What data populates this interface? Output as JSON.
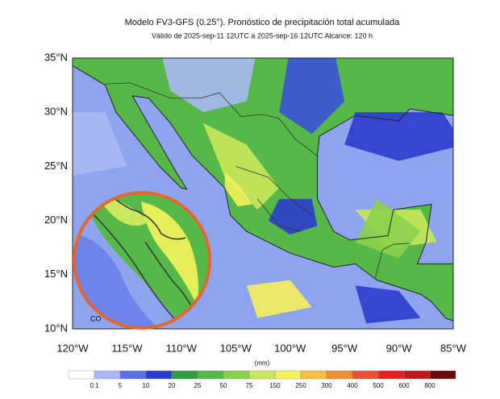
{
  "title": "Modelo FV3-GFS (0.25°). Pronóstico de precipitación total acumulada",
  "subtitle": "Válido de 2025-sep-11 12UTC a 2025-sep-16 12UTC    Alcance: 120 h",
  "map": {
    "lat_labels": [
      "35°N",
      "30°N",
      "25°N",
      "20°N",
      "15°N",
      "10°N"
    ],
    "lon_labels": [
      "120°W",
      "115°W",
      "110°W",
      "105°W",
      "100°W",
      "95°W",
      "90°W",
      "85°W"
    ],
    "logo_text": "CO"
  },
  "colorbar": {
    "unit": "(mm)",
    "ticks": [
      0.1,
      5,
      10,
      20,
      25,
      50,
      75,
      150,
      250,
      300,
      400,
      500,
      600,
      800
    ],
    "colors": [
      "#ffffff",
      "#aab9f3",
      "#5b6fe9",
      "#2b3dcc",
      "#2f9d3f",
      "#55b849",
      "#8bd24b",
      "#c9e85b",
      "#f5ef5b",
      "#f4c141",
      "#ef8f31",
      "#e85131",
      "#df2121",
      "#bf1818",
      "#6a0a0a"
    ]
  }
}
